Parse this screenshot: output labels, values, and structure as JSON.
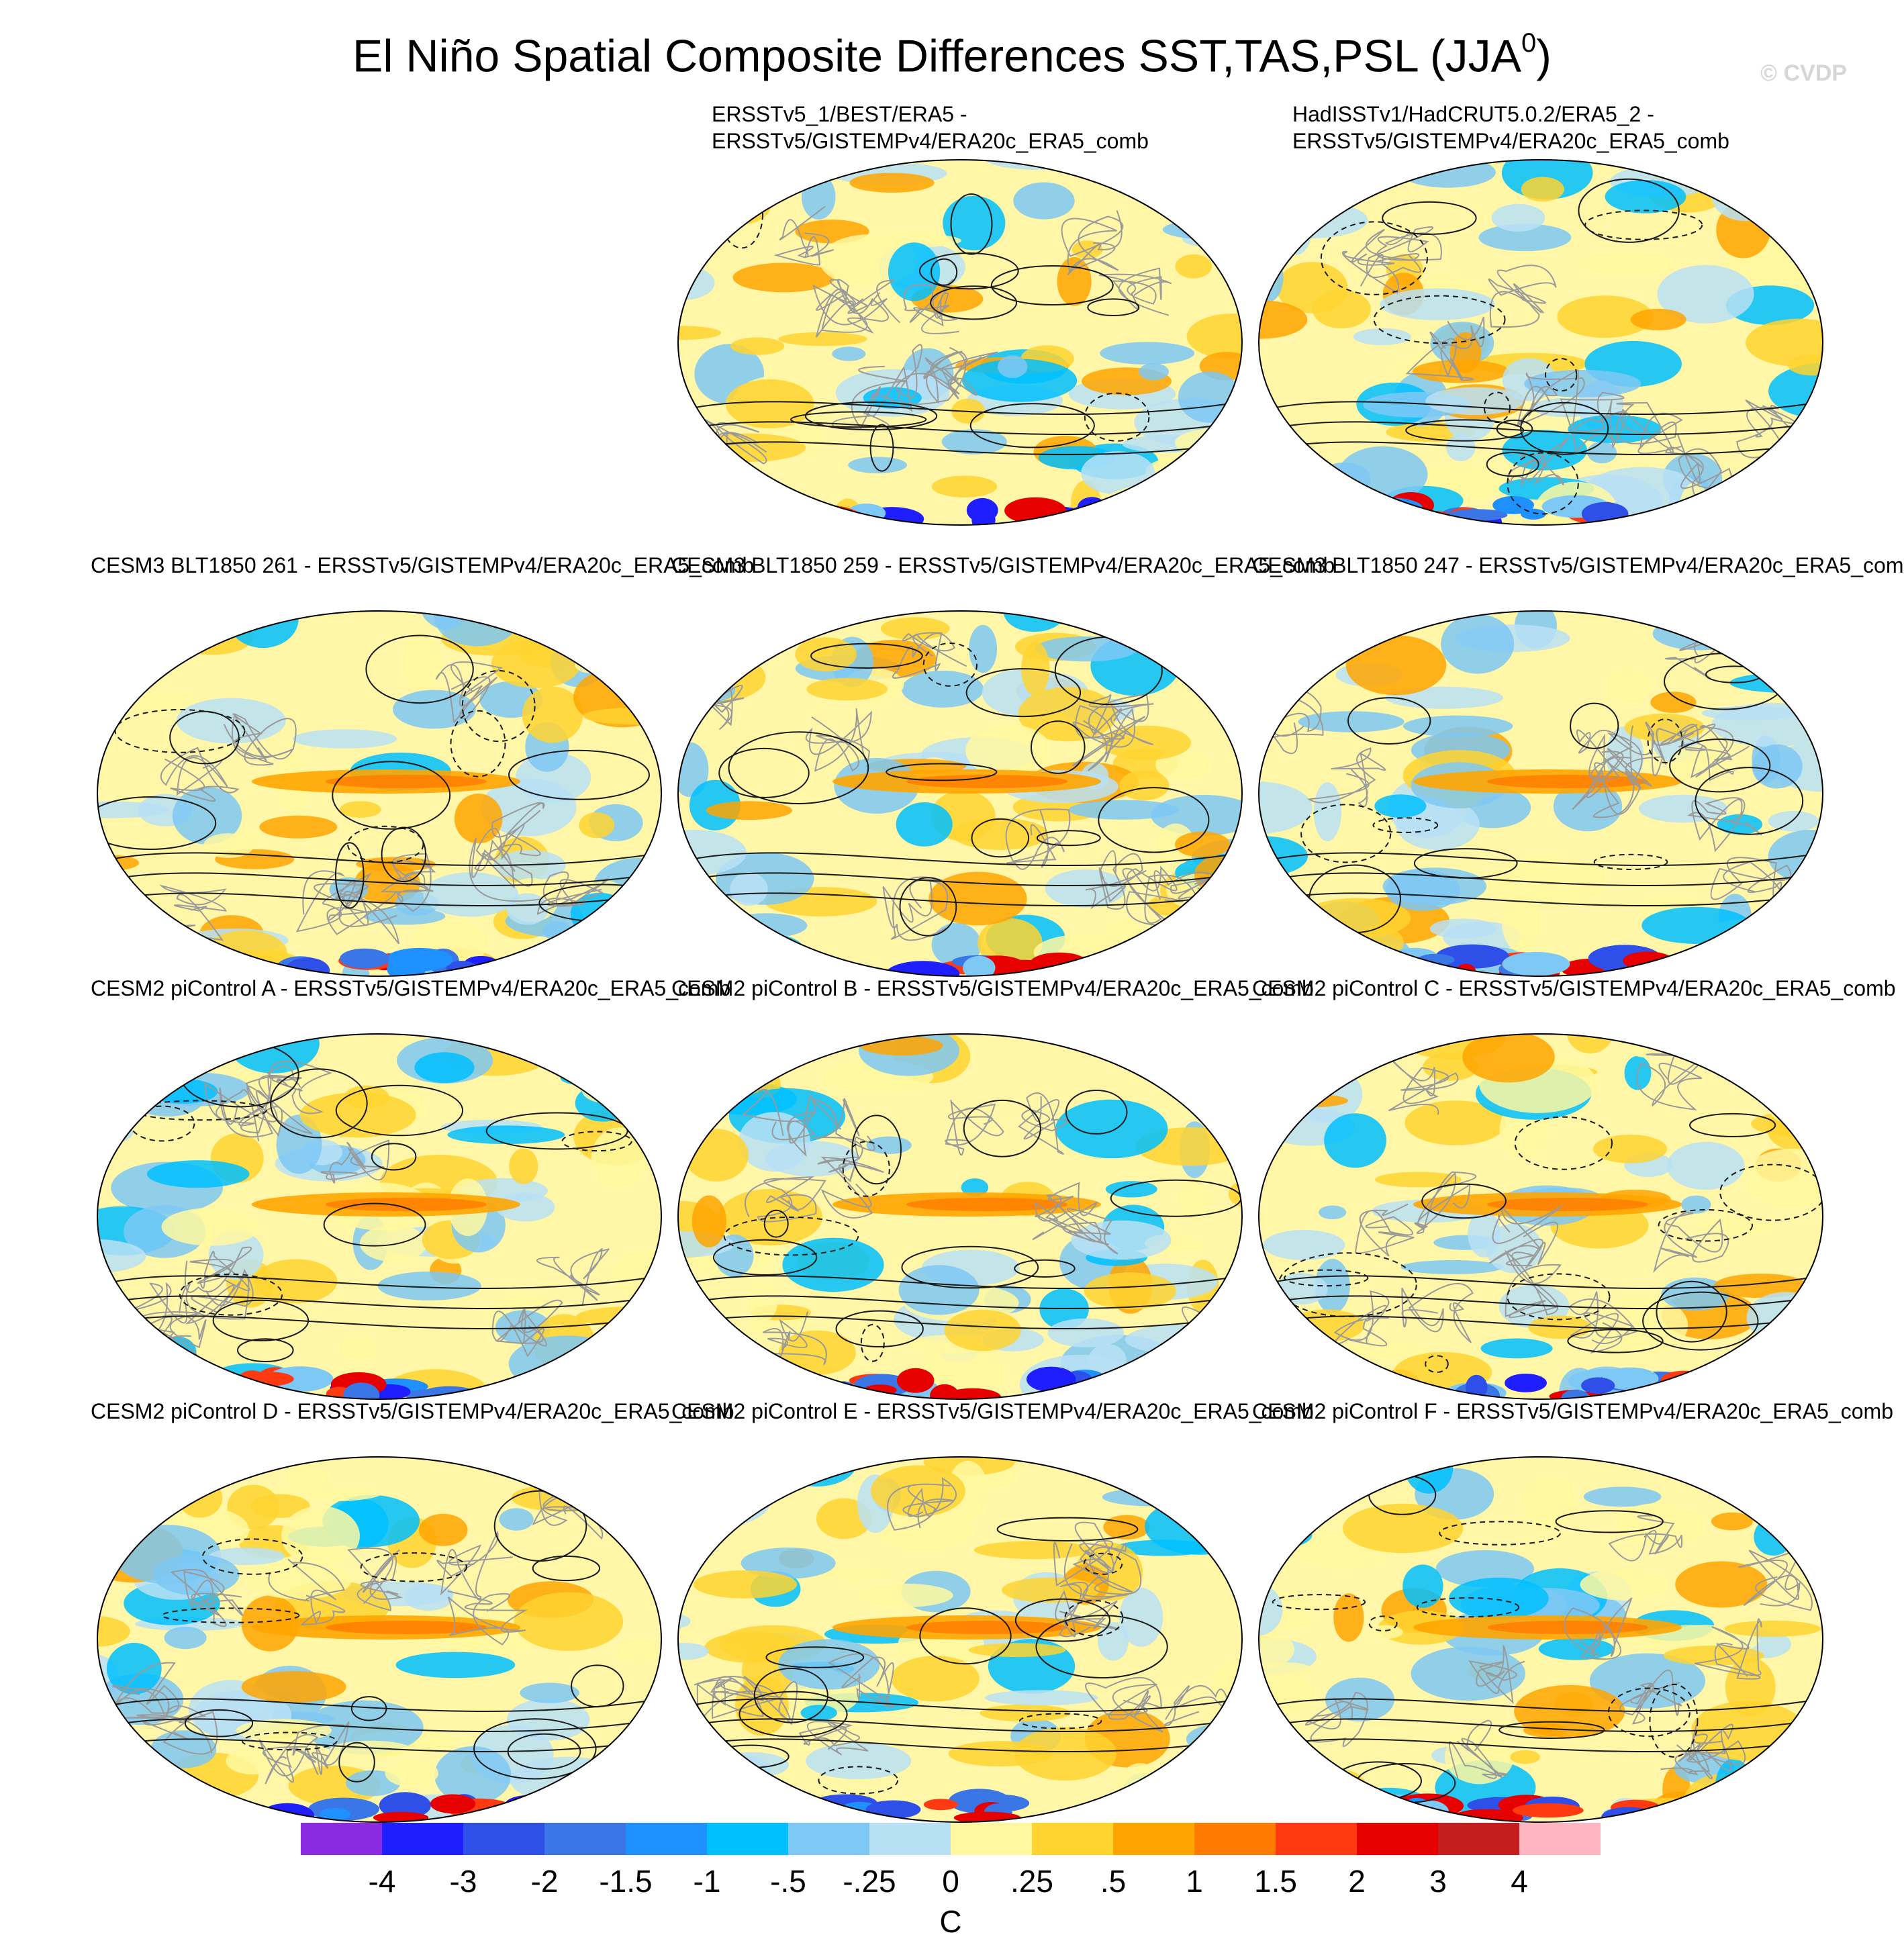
{
  "figure": {
    "title": "El Niño Spatial Composite Differences SST,TAS,PSL (JJA",
    "title_superscript": "0",
    "title_suffix": ")",
    "watermark": "© CVDP"
  },
  "panels": [
    {
      "id": "obs1",
      "line1": "ERSSTv5_1/BEST/ERA5 -",
      "line2": "ERSSTv5/GISTEMPv4/ERA20c_ERA5_comb"
    },
    {
      "id": "obs2",
      "line1": "HadISSTv1/HadCRUT5.0.2/ERA5_2 -",
      "line2": "ERSSTv5/GISTEMPv4/ERA20c_ERA5_comb"
    },
    {
      "id": "blt261",
      "title": "CESM3 BLT1850 261 - ERSSTv5/GISTEMPv4/ERA20c_ERA5_comb"
    },
    {
      "id": "blt259",
      "title": "CESM3 BLT1850 259 - ERSSTv5/GISTEMPv4/ERA20c_ERA5_comb"
    },
    {
      "id": "blt247",
      "title": "CESM3 BLT1850 247 - ERSSTv5/GISTEMPv4/ERA20c_ERA5_comb"
    },
    {
      "id": "picA",
      "title": "CESM2 piControl A - ERSSTv5/GISTEMPv4/ERA20c_ERA5_comb"
    },
    {
      "id": "picB",
      "title": "CESM2 piControl B - ERSSTv5/GISTEMPv4/ERA20c_ERA5_comb"
    },
    {
      "id": "picC",
      "title": "CESM2 piControl C - ERSSTv5/GISTEMPv4/ERA20c_ERA5_comb"
    },
    {
      "id": "picD",
      "title": "CESM2 piControl D - ERSSTv5/GISTEMPv4/ERA20c_ERA5_comb"
    },
    {
      "id": "picE",
      "title": "CESM2 piControl E - ERSSTv5/GISTEMPv4/ERA20c_ERA5_comb"
    },
    {
      "id": "picF",
      "title": "CESM2 piControl F - ERSSTv5/GISTEMPv4/ERA20c_ERA5_comb"
    }
  ],
  "colorbar": {
    "labels": [
      "-4",
      "-3",
      "-2",
      "-1.5",
      "-1",
      "-.5",
      "-.25",
      "0",
      ".25",
      ".5",
      "1",
      "1.5",
      "2",
      "3",
      "4"
    ],
    "units": "C",
    "colors": [
      "#8a2be2",
      "#1e1eff",
      "#2e4fe8",
      "#3a76e6",
      "#1e90ff",
      "#00bfff",
      "#7ec8f5",
      "#b8e0f5",
      "#fff8a0",
      "#ffd330",
      "#ffa500",
      "#ff7a00",
      "#ff3a10",
      "#e60000",
      "#c41e1e",
      "#ffb6c1"
    ]
  },
  "map_colors": {
    "land_outline": "#9a9a9a",
    "contour": "#1a1a1a",
    "ocean_base": "#fff6a8"
  }
}
